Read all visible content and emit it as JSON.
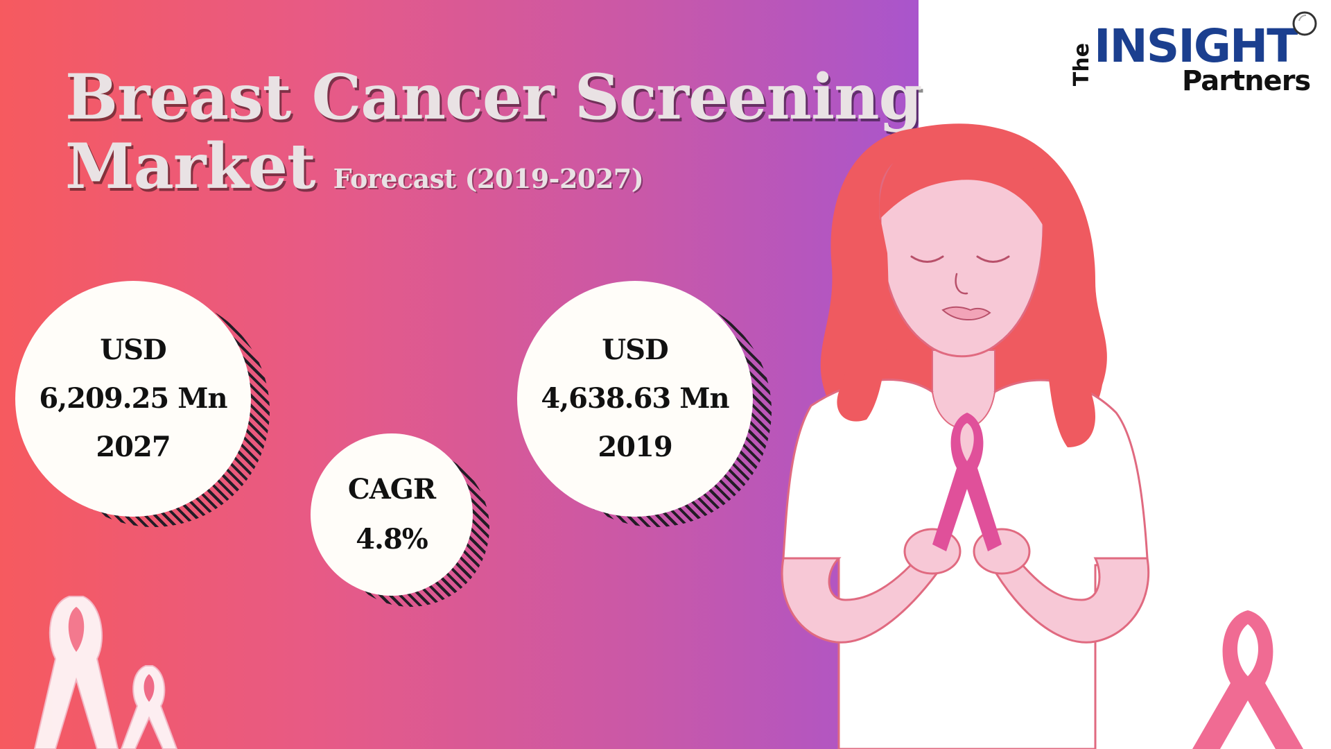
{
  "title": {
    "line1": "Breast Cancer Screening",
    "line2": "Market",
    "subtitle": "Forecast (2019-2027)"
  },
  "stats": {
    "value_2027": {
      "currency": "USD",
      "amount": "6,209.25 Mn",
      "year": "2027"
    },
    "cagr": {
      "label": "CAGR",
      "value": "4.8%"
    },
    "value_2019": {
      "currency": "USD",
      "amount": "4,638.63 Mn",
      "year": "2019"
    }
  },
  "logo": {
    "the": "The",
    "insight": "INSIGHT",
    "partners": "Partners"
  },
  "colors": {
    "gradient_start": "#f65a5f",
    "gradient_end": "#a955cc",
    "title_text": "#e9e2e4",
    "bubble_fill": "#fffdf9",
    "logo_blue": "#1b3f8f",
    "hair": "#ef5a60",
    "ribbon_pink": "#e0509a"
  },
  "icons": {
    "awareness_ribbon": "pink-ribbon-icon",
    "magnifier": "magnifier-icon"
  }
}
